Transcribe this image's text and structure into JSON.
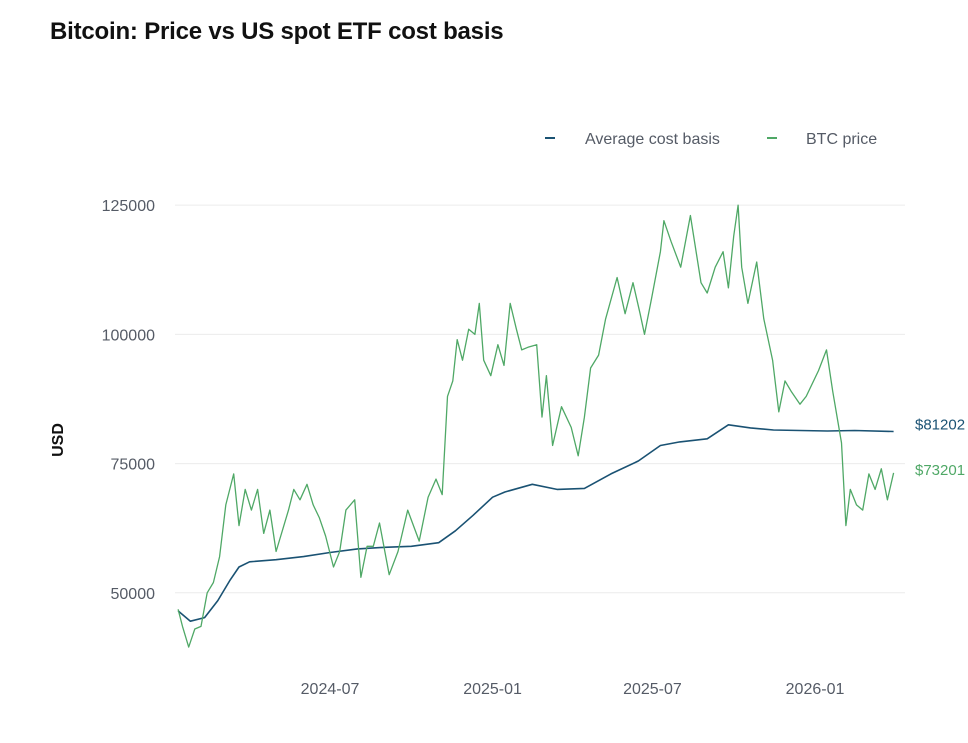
{
  "chart_data": {
    "type": "line",
    "title": "Bitcoin: Price vs US spot ETF cost basis",
    "xlabel": "",
    "ylabel": "USD",
    "y_ticks": [
      50000,
      75000,
      100000,
      125000
    ],
    "y_tick_labels": [
      "50000",
      "75000",
      "100000",
      "125000"
    ],
    "x_ticks": [
      "2024-07",
      "2025-01",
      "2025-07",
      "2026-01"
    ],
    "x_tick_labels": [
      "2024-07",
      "2025-01",
      "2025-07",
      "2026-01"
    ],
    "ylim": [
      37000,
      126000
    ],
    "xlim": [
      "2024-01-11",
      "2026-03-31"
    ],
    "grid": true,
    "legend_position": "top-right",
    "series": [
      {
        "name": "Average cost basis",
        "color": "#1a5273",
        "end_label": "$81202",
        "points": [
          [
            "2024-01-11",
            46500
          ],
          [
            "2024-01-25",
            44500
          ],
          [
            "2024-02-10",
            45200
          ],
          [
            "2024-02-25",
            48500
          ],
          [
            "2024-03-10",
            52500
          ],
          [
            "2024-03-20",
            55000
          ],
          [
            "2024-04-01",
            56000
          ],
          [
            "2024-05-01",
            56400
          ],
          [
            "2024-06-01",
            57000
          ],
          [
            "2024-07-01",
            57800
          ],
          [
            "2024-08-01",
            58500
          ],
          [
            "2024-09-01",
            58800
          ],
          [
            "2024-10-01",
            59000
          ],
          [
            "2024-11-01",
            59700
          ],
          [
            "2024-11-20",
            62000
          ],
          [
            "2024-12-10",
            65000
          ],
          [
            "2025-01-01",
            68500
          ],
          [
            "2025-01-15",
            69500
          ],
          [
            "2025-02-15",
            71000
          ],
          [
            "2025-03-15",
            70000
          ],
          [
            "2025-04-15",
            70200
          ],
          [
            "2025-05-15",
            73000
          ],
          [
            "2025-06-15",
            75500
          ],
          [
            "2025-07-10",
            78500
          ],
          [
            "2025-08-01",
            79200
          ],
          [
            "2025-09-01",
            79800
          ],
          [
            "2025-09-25",
            82500
          ],
          [
            "2025-10-20",
            81900
          ],
          [
            "2025-11-15",
            81500
          ],
          [
            "2025-12-15",
            81400
          ],
          [
            "2026-01-15",
            81300
          ],
          [
            "2026-02-15",
            81400
          ],
          [
            "2026-03-31",
            81202
          ]
        ]
      },
      {
        "name": "BTC price",
        "color": "#4fa866",
        "end_label": "$73201",
        "points": [
          [
            "2024-01-11",
            46800
          ],
          [
            "2024-01-16",
            43500
          ],
          [
            "2024-01-23",
            39500
          ],
          [
            "2024-01-30",
            43000
          ],
          [
            "2024-02-06",
            43500
          ],
          [
            "2024-02-13",
            50000
          ],
          [
            "2024-02-20",
            52000
          ],
          [
            "2024-02-27",
            57000
          ],
          [
            "2024-03-05",
            67000
          ],
          [
            "2024-03-14",
            73000
          ],
          [
            "2024-03-20",
            63000
          ],
          [
            "2024-03-27",
            70000
          ],
          [
            "2024-04-03",
            66000
          ],
          [
            "2024-04-10",
            70000
          ],
          [
            "2024-04-17",
            61500
          ],
          [
            "2024-04-24",
            66000
          ],
          [
            "2024-05-01",
            58000
          ],
          [
            "2024-05-08",
            62000
          ],
          [
            "2024-05-15",
            66000
          ],
          [
            "2024-05-21",
            70000
          ],
          [
            "2024-05-28",
            68000
          ],
          [
            "2024-06-05",
            71000
          ],
          [
            "2024-06-12",
            67000
          ],
          [
            "2024-06-19",
            64500
          ],
          [
            "2024-06-26",
            61000
          ],
          [
            "2024-07-05",
            55000
          ],
          [
            "2024-07-12",
            58000
          ],
          [
            "2024-07-19",
            66000
          ],
          [
            "2024-07-29",
            68000
          ],
          [
            "2024-08-05",
            53000
          ],
          [
            "2024-08-12",
            59000
          ],
          [
            "2024-08-19",
            59000
          ],
          [
            "2024-08-26",
            63500
          ],
          [
            "2024-09-06",
            53500
          ],
          [
            "2024-09-16",
            58000
          ],
          [
            "2024-09-27",
            66000
          ],
          [
            "2024-10-10",
            60000
          ],
          [
            "2024-10-20",
            68500
          ],
          [
            "2024-10-29",
            72000
          ],
          [
            "2024-11-05",
            69000
          ],
          [
            "2024-11-11",
            88000
          ],
          [
            "2024-11-17",
            91000
          ],
          [
            "2024-11-22",
            99000
          ],
          [
            "2024-11-28",
            95000
          ],
          [
            "2024-12-05",
            101000
          ],
          [
            "2024-12-12",
            100000
          ],
          [
            "2024-12-17",
            106000
          ],
          [
            "2024-12-22",
            95000
          ],
          [
            "2024-12-30",
            92000
          ],
          [
            "2025-01-07",
            98000
          ],
          [
            "2025-01-14",
            94000
          ],
          [
            "2025-01-21",
            106000
          ],
          [
            "2025-01-28",
            101000
          ],
          [
            "2025-02-03",
            97000
          ],
          [
            "2025-02-10",
            97500
          ],
          [
            "2025-02-20",
            98000
          ],
          [
            "2025-02-26",
            84000
          ],
          [
            "2025-03-03",
            92000
          ],
          [
            "2025-03-10",
            78500
          ],
          [
            "2025-03-20",
            86000
          ],
          [
            "2025-03-31",
            82000
          ],
          [
            "2025-04-08",
            76500
          ],
          [
            "2025-04-15",
            84000
          ],
          [
            "2025-04-22",
            93500
          ],
          [
            "2025-05-01",
            96000
          ],
          [
            "2025-05-09",
            103000
          ],
          [
            "2025-05-22",
            111000
          ],
          [
            "2025-05-31",
            104000
          ],
          [
            "2025-06-09",
            110000
          ],
          [
            "2025-06-17",
            104000
          ],
          [
            "2025-06-22",
            100000
          ],
          [
            "2025-06-30",
            107000
          ],
          [
            "2025-07-10",
            116000
          ],
          [
            "2025-07-14",
            122000
          ],
          [
            "2025-07-22",
            118000
          ],
          [
            "2025-08-02",
            113000
          ],
          [
            "2025-08-13",
            123000
          ],
          [
            "2025-08-25",
            110000
          ],
          [
            "2025-09-01",
            108000
          ],
          [
            "2025-09-10",
            113000
          ],
          [
            "2025-09-19",
            116000
          ],
          [
            "2025-09-25",
            109000
          ],
          [
            "2025-10-01",
            119000
          ],
          [
            "2025-10-06",
            125000
          ],
          [
            "2025-10-10",
            113000
          ],
          [
            "2025-10-17",
            106000
          ],
          [
            "2025-10-27",
            114000
          ],
          [
            "2025-11-04",
            103000
          ],
          [
            "2025-11-14",
            95000
          ],
          [
            "2025-11-21",
            85000
          ],
          [
            "2025-11-28",
            91000
          ],
          [
            "2025-12-05",
            89000
          ],
          [
            "2025-12-15",
            86500
          ],
          [
            "2025-12-22",
            88000
          ],
          [
            "2026-01-05",
            93000
          ],
          [
            "2026-01-14",
            97000
          ],
          [
            "2026-01-21",
            89000
          ],
          [
            "2026-01-31",
            79000
          ],
          [
            "2026-02-05",
            63000
          ],
          [
            "2026-02-10",
            70000
          ],
          [
            "2026-02-17",
            67000
          ],
          [
            "2026-02-24",
            66000
          ],
          [
            "2026-03-03",
            73000
          ],
          [
            "2026-03-10",
            70000
          ],
          [
            "2026-03-17",
            74000
          ],
          [
            "2026-03-24",
            68000
          ],
          [
            "2026-03-31",
            73201
          ]
        ]
      }
    ]
  }
}
